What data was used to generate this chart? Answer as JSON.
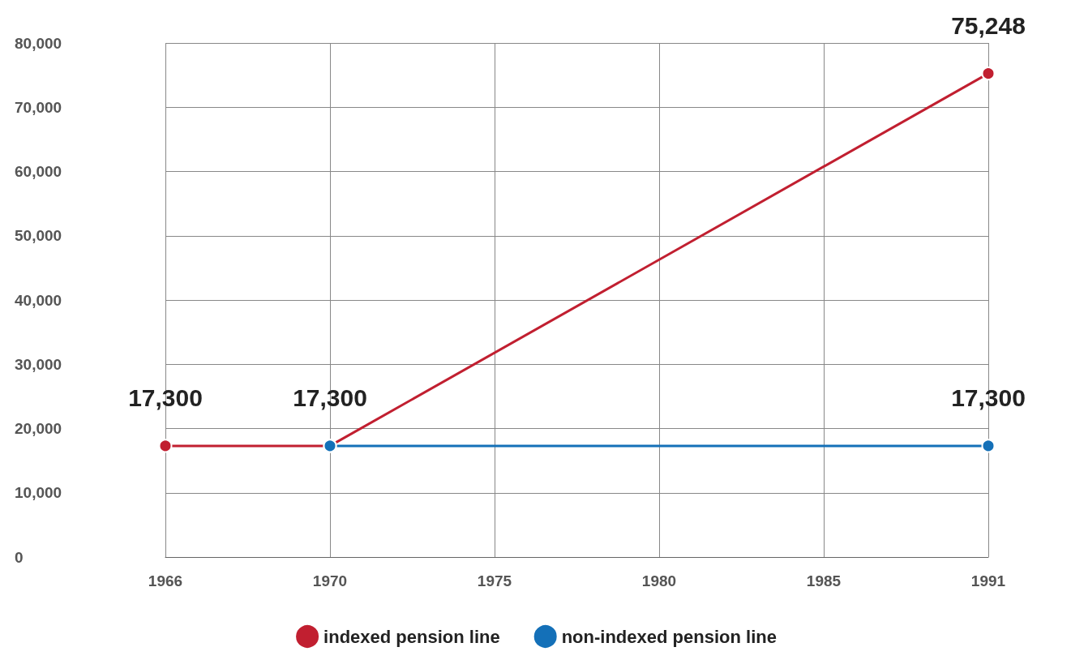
{
  "chart_data": {
    "type": "line",
    "categories": [
      "1966",
      "1970",
      "1975",
      "1980",
      "1985",
      "1991"
    ],
    "series": [
      {
        "name": "indexed pension line",
        "color": "#c11f30",
        "values": [
          17300,
          17300,
          null,
          null,
          null,
          75248
        ],
        "value_labels": [
          "17,300",
          "17,300",
          null,
          null,
          null,
          "75,248"
        ]
      },
      {
        "name": "non-indexed pension line",
        "color": "#1470b8",
        "values": [
          null,
          17300,
          null,
          null,
          null,
          17300
        ],
        "value_labels": [
          null,
          null,
          null,
          null,
          null,
          "17,300"
        ]
      }
    ],
    "ylim": [
      0,
      80000
    ],
    "yticks": [
      {
        "value": 0,
        "label": "0"
      },
      {
        "value": 10000,
        "label": "10,000"
      },
      {
        "value": 20000,
        "label": "20,000"
      },
      {
        "value": 30000,
        "label": "30,000"
      },
      {
        "value": 40000,
        "label": "40,000"
      },
      {
        "value": 50000,
        "label": "50,000"
      },
      {
        "value": 60000,
        "label": "60,000"
      },
      {
        "value": 70000,
        "label": "70,000"
      },
      {
        "value": 80000,
        "label": "80,000"
      }
    ],
    "grid": true,
    "legend": "bottom",
    "marker": "circle",
    "line_style": "solid"
  }
}
